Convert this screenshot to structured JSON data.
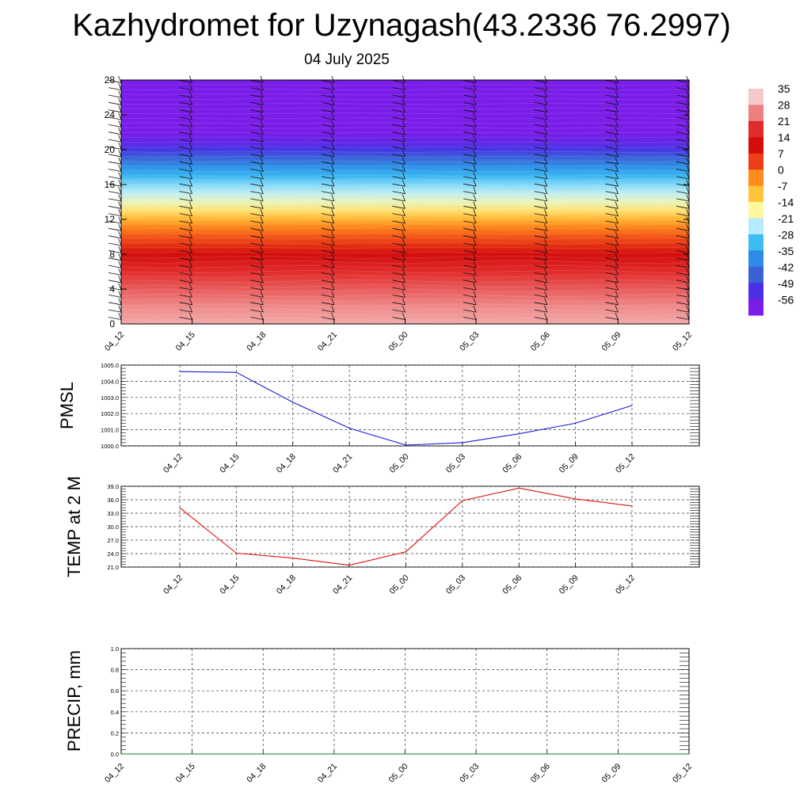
{
  "title": "Kazhydromet for Uzynagash(43.2336 76.2997)",
  "subtitle": "04 July 2025",
  "chart_data": [
    {
      "type": "heatmap",
      "name": "vertical-section",
      "title": "Kazhydromet for Uzynagash(43.2336 76.2997)",
      "x_ticks": [
        "04_12",
        "04_15",
        "04_18",
        "04_21",
        "05_00",
        "05_03",
        "05_06",
        "05_09",
        "05_12"
      ],
      "y_ticks": [
        0,
        4,
        8,
        12,
        16,
        20,
        24,
        28
      ],
      "ylim": [
        0,
        28
      ],
      "colorbar": {
        "labels": [
          "35",
          "28",
          "21",
          "14",
          "7",
          "0",
          "-7",
          "-14",
          "-21",
          "-28",
          "-35",
          "-42",
          "-49",
          "-56"
        ],
        "colors": [
          "#f5c9c9",
          "#ee7f7f",
          "#e22b2b",
          "#d30d0d",
          "#ef3d17",
          "#ff8b1c",
          "#ffc43a",
          "#fff79e",
          "#b6ecff",
          "#3cbdf2",
          "#2c8ce8",
          "#3a62d6",
          "#4a2fe6",
          "#7a1de8"
        ]
      },
      "temperature_profile": {
        "heights": [
          0,
          2,
          4,
          6,
          8,
          10,
          11,
          12,
          13,
          14,
          15,
          16,
          17,
          18,
          19,
          20,
          21,
          22,
          24,
          28
        ],
        "values": [
          32,
          29,
          25,
          21,
          14,
          5,
          1,
          -5,
          -11,
          -16,
          -20,
          -24,
          -29,
          -34,
          -41,
          -48,
          -53,
          -57,
          -58,
          -58
        ]
      },
      "wind_barbs": true,
      "grid": false
    },
    {
      "type": "line",
      "name": "PMSL",
      "ylabel": "PMSL",
      "x": [
        "04_12",
        "04_15",
        "04_18",
        "04_21",
        "05_00",
        "05_03",
        "05_06",
        "05_09",
        "05_12"
      ],
      "series": [
        {
          "values": [
            1004.6,
            1004.55,
            1002.7,
            1001.1,
            1000.05,
            1000.2,
            1000.75,
            1001.4,
            1002.5
          ],
          "color": "#1a1ad6"
        }
      ],
      "ylim": [
        1000.0,
        1005.0
      ],
      "y_ticks": [
        "1000.0",
        "1001.0",
        "1002.0",
        "1003.0",
        "1004.0",
        "1005.0"
      ],
      "grid": true
    },
    {
      "type": "line",
      "name": "TEMP at 2 M",
      "ylabel": "TEMP at 2 M",
      "x": [
        "04_12",
        "04_15",
        "04_18",
        "04_21",
        "05_00",
        "05_03",
        "05_06",
        "05_09",
        "05_12"
      ],
      "series": [
        {
          "values": [
            34.2,
            24.1,
            23.0,
            21.4,
            24.4,
            35.8,
            38.6,
            36.2,
            34.6
          ],
          "color": "#e01010"
        }
      ],
      "ylim": [
        21.0,
        39.0
      ],
      "y_ticks": [
        "21.0",
        "24.0",
        "27.0",
        "30.0",
        "33.0",
        "36.0",
        "39.0"
      ],
      "grid": true
    },
    {
      "type": "line",
      "name": "PRECIP, mm",
      "ylabel": "PRECIP, mm",
      "x": [
        "04_12",
        "04_15",
        "04_18",
        "04_21",
        "05_00",
        "05_03",
        "05_06",
        "05_09",
        "05_12"
      ],
      "series": [
        {
          "values": [
            0,
            0,
            0,
            0,
            0,
            0,
            0,
            0,
            0
          ],
          "color": "#1f7a1f"
        }
      ],
      "ylim": [
        0.0,
        1.0
      ],
      "y_ticks": [
        "0.0",
        "0.2",
        "0.4",
        "0.6",
        "0.8",
        "1.0"
      ],
      "grid": true
    }
  ]
}
